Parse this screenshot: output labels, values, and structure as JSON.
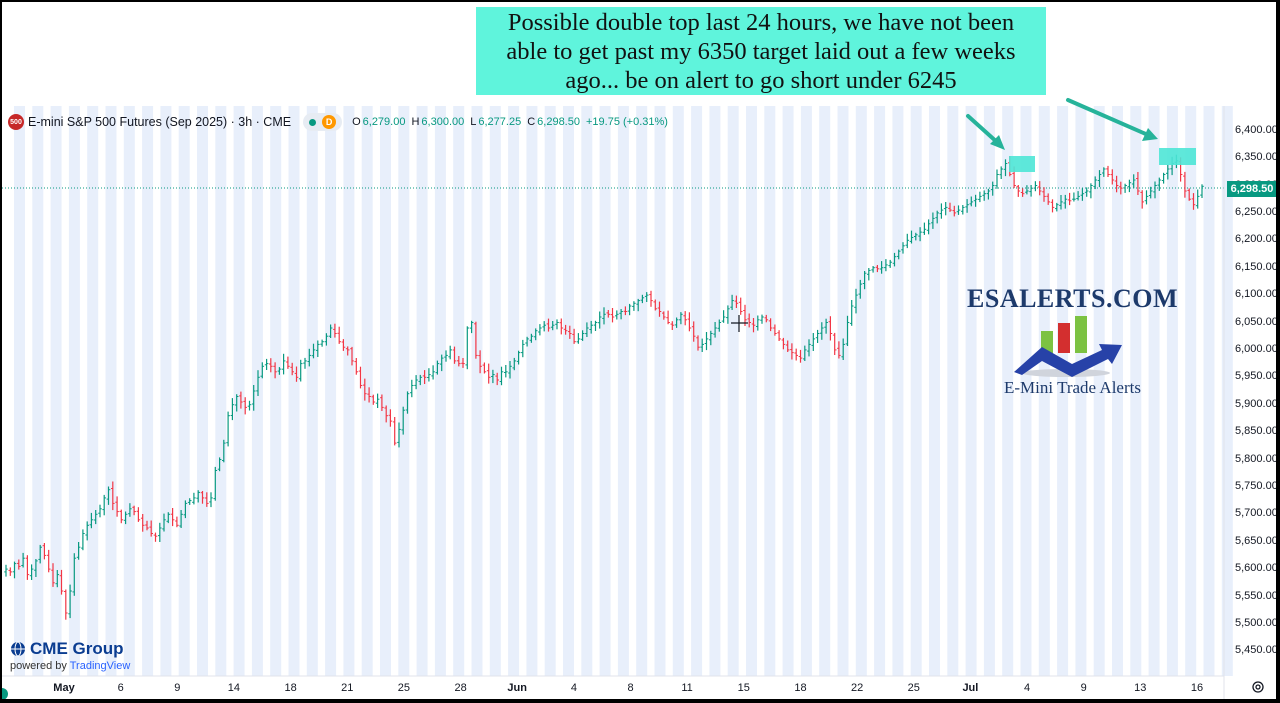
{
  "note": {
    "lines": [
      "Possible double top last 24 hours, we have not been",
      "able to get past my 6350 target laid out a few weeks",
      "ago... be on alert to go short under 6245"
    ],
    "bg_color": "#5ff4dc"
  },
  "header": {
    "symbol_badge": "500",
    "title": "E-mini S&P 500 Futures (Sep 2025) · 3h · CME",
    "status_icon": "market-open-dot-icon",
    "delay_badge": "D",
    "ohlc": [
      {
        "key": "O",
        "value": "6,279.00"
      },
      {
        "key": "H",
        "value": "6,300.00"
      },
      {
        "key": "L",
        "value": "6,277.25"
      },
      {
        "key": "C",
        "value": "6,298.50"
      },
      {
        "key": "",
        "value": "+19.75 (+0.31%)"
      }
    ]
  },
  "brand": {
    "name": "ESALERTS.COM",
    "tagline": "E-Mini Trade Alerts",
    "icon": "rising-bars-arrow-logo"
  },
  "footer": {
    "cme_name": "CME Group",
    "powered_prefix": "powered by ",
    "powered_name": "TradingView",
    "settings_icon": "gear-icon"
  },
  "last_price": "6,298.50",
  "colors": {
    "up": "#089981",
    "down": "#f23645",
    "highlight": "#4ee6d6",
    "arrow": "#26b39a",
    "session_band": "#e8effb"
  },
  "chart_data": {
    "type": "candlestick",
    "title": "E-mini S&P 500 Futures (Sep 2025) · 3h · CME",
    "ylim": [
      5405,
      6445
    ],
    "y_ticks": [
      "6,400.00",
      "6,350.00",
      "6,300.00",
      "6,250.00",
      "6,200.00",
      "6,150.00",
      "6,100.00",
      "6,050.00",
      "6,000.00",
      "5,950.00",
      "5,900.00",
      "5,850.00",
      "5,800.00",
      "5,750.00",
      "5,700.00",
      "5,650.00",
      "5,600.00",
      "5,550.00",
      "5,500.00",
      "5,450.00"
    ],
    "x_ticks": [
      "May",
      "6",
      "9",
      "14",
      "18",
      "21",
      "25",
      "28",
      "Jun",
      "4",
      "8",
      "11",
      "15",
      "18",
      "22",
      "25",
      "Jul",
      "4",
      "9",
      "13",
      "16"
    ],
    "x_ticks_major": [
      "May",
      "Jun",
      "Jul"
    ],
    "last_close": 6298.5,
    "closes": [
      5600,
      5595,
      5610,
      5605,
      5620,
      5590,
      5600,
      5615,
      5640,
      5625,
      5600,
      5575,
      5590,
      5560,
      5520,
      5560,
      5620,
      5640,
      5665,
      5680,
      5690,
      5700,
      5710,
      5730,
      5745,
      5720,
      5705,
      5690,
      5700,
      5710,
      5705,
      5690,
      5680,
      5675,
      5665,
      5660,
      5675,
      5690,
      5700,
      5690,
      5680,
      5700,
      5720,
      5725,
      5730,
      5740,
      5730,
      5720,
      5730,
      5780,
      5800,
      5830,
      5880,
      5900,
      5915,
      5905,
      5895,
      5900,
      5925,
      5950,
      5970,
      5975,
      5970,
      5960,
      5965,
      5980,
      5970,
      5960,
      5950,
      5975,
      5980,
      5990,
      6000,
      6010,
      6015,
      6025,
      6040,
      6030,
      6015,
      6005,
      6000,
      5980,
      5960,
      5935,
      5920,
      5915,
      5905,
      5910,
      5895,
      5880,
      5870,
      5830,
      5855,
      5890,
      5920,
      5935,
      5945,
      5950,
      5950,
      5955,
      5960,
      5975,
      5985,
      5990,
      6000,
      5980,
      5975,
      5975,
      6040,
      6050,
      5990,
      5970,
      5960,
      5950,
      5955,
      5945,
      5960,
      5960,
      5970,
      5980,
      5995,
      6010,
      6020,
      6025,
      6035,
      6040,
      6045,
      6040,
      6045,
      6050,
      6040,
      6035,
      6030,
      6015,
      6020,
      6030,
      6040,
      6045,
      6050,
      6060,
      6065,
      6065,
      6060,
      6065,
      6070,
      6070,
      6080,
      6085,
      6090,
      6095,
      6100,
      6090,
      6075,
      6070,
      6060,
      6050,
      6045,
      6055,
      6065,
      6055,
      6040,
      6025,
      6005,
      6010,
      6020,
      6030,
      6040,
      6050,
      6060,
      6075,
      6090,
      6085,
      6070,
      6055,
      6050,
      6045,
      6055,
      6060,
      6055,
      6040,
      6030,
      6020,
      6010,
      6000,
      5995,
      5990,
      5985,
      6000,
      6010,
      6020,
      6030,
      6040,
      6050,
      6030,
      6000,
      5990,
      6010,
      6050,
      6080,
      6100,
      6120,
      6140,
      6145,
      6150,
      6148,
      6150,
      6155,
      6160,
      6170,
      6180,
      6190,
      6200,
      6205,
      6210,
      6215,
      6220,
      6230,
      6240,
      6250,
      6255,
      6260,
      6255,
      6250,
      6255,
      6260,
      6265,
      6270,
      6275,
      6280,
      6285,
      6290,
      6300,
      6320,
      6330,
      6340,
      6320,
      6300,
      6290,
      6285,
      6290,
      6295,
      6300,
      6290,
      6280,
      6270,
      6260,
      6265,
      6270,
      6275,
      6272,
      6275,
      6280,
      6285,
      6290,
      6300,
      6310,
      6320,
      6330,
      6320,
      6310,
      6300,
      6295,
      6300,
      6305,
      6310,
      6290,
      6270,
      6280,
      6290,
      6300,
      6310,
      6320,
      6330,
      6340,
      6345,
      6320,
      6290,
      6275,
      6265,
      6280,
      6298.5
    ]
  }
}
